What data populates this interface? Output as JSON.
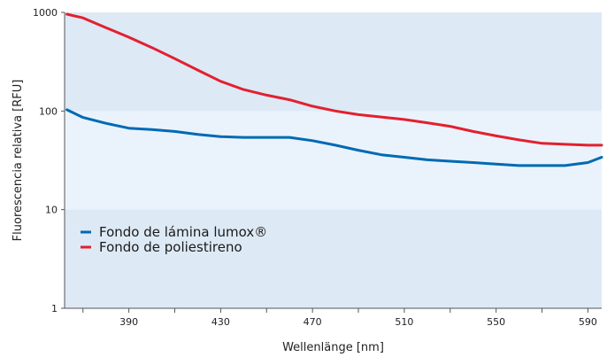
{
  "chart_data": {
    "type": "line",
    "xlabel": "Wellenlänge [nm]",
    "ylabel": "Fluorescencia relativa [RFU]",
    "xlim": [
      362,
      596
    ],
    "ylim": [
      1,
      1000
    ],
    "yscale": "log",
    "x_ticks": [
      390,
      430,
      470,
      510,
      550,
      590
    ],
    "y_ticks": [
      1,
      10,
      100,
      1000
    ],
    "grid": false,
    "legend_position": "lower-left",
    "background_bands": {
      "outer": "#dde9f5",
      "middle_10_to_100": "#eaf3fb"
    },
    "series": [
      {
        "name": "Fondo de lámina lumox®",
        "color": "#0069b4",
        "x": [
          363,
          370,
          380,
          390,
          400,
          410,
          420,
          430,
          440,
          450,
          460,
          470,
          480,
          490,
          500,
          510,
          520,
          530,
          540,
          550,
          560,
          570,
          580,
          590,
          596
        ],
        "y": [
          103,
          86,
          75,
          67,
          65,
          62,
          58,
          55,
          54,
          54,
          54,
          50,
          45,
          40,
          36,
          34,
          32,
          31,
          30,
          29,
          28,
          28,
          28,
          30,
          34
        ]
      },
      {
        "name": "Fondo de poliestireno",
        "color": "#e3202f",
        "x": [
          363,
          370,
          380,
          390,
          400,
          410,
          420,
          430,
          440,
          450,
          460,
          470,
          480,
          490,
          500,
          510,
          520,
          530,
          540,
          550,
          560,
          570,
          580,
          590,
          596
        ],
        "y": [
          960,
          880,
          700,
          560,
          440,
          340,
          260,
          200,
          165,
          145,
          130,
          112,
          100,
          92,
          87,
          82,
          76,
          70,
          62,
          56,
          51,
          47,
          46,
          45,
          45
        ]
      }
    ]
  }
}
